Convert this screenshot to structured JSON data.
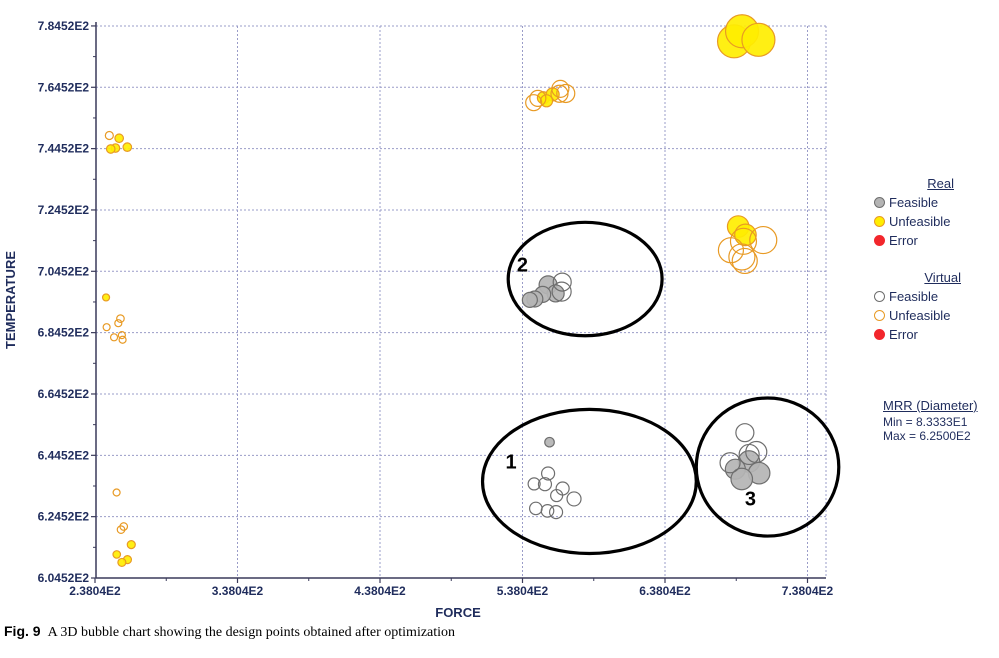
{
  "chart_data": {
    "type": "scatter",
    "xlabel": "FORCE",
    "ylabel": "TEMPERATURE",
    "xlim": [
      238.04,
      738.04
    ],
    "ylim": [
      604.52,
      784.52
    ],
    "x_ticks": [
      "2.3804E2",
      "3.3804E2",
      "4.3804E2",
      "5.3804E2",
      "6.3804E2",
      "7.3804E2"
    ],
    "y_ticks": [
      "6.0452E2",
      "6.2452E2",
      "6.4452E2",
      "6.6452E2",
      "6.8452E2",
      "7.0452E2",
      "7.2452E2",
      "7.4452E2",
      "7.6452E2",
      "7.8452E2"
    ],
    "grid": true,
    "series": [
      {
        "name": "Real Feasible",
        "type": "real",
        "status": "feasible",
        "points": [
          {
            "x": 556.0,
            "y": 700.1,
            "size": 180
          },
          {
            "x": 561.3,
            "y": 697.3,
            "size": 170
          },
          {
            "x": 552.2,
            "y": 697.0,
            "size": 160
          },
          {
            "x": 546.7,
            "y": 695.5,
            "size": 160
          },
          {
            "x": 543.2,
            "y": 695.2,
            "size": 150
          },
          {
            "x": 557.0,
            "y": 648.8,
            "size": 95
          },
          {
            "x": 697.0,
            "y": 642.5,
            "size": 215
          },
          {
            "x": 687.4,
            "y": 640.0,
            "size": 200
          },
          {
            "x": 704.1,
            "y": 638.7,
            "size": 215
          },
          {
            "x": 691.9,
            "y": 636.8,
            "size": 215
          }
        ]
      },
      {
        "name": "Real Unfeasible",
        "type": "real",
        "status": "unfeasible",
        "points": [
          {
            "x": 255.0,
            "y": 747.9,
            "size": 85
          },
          {
            "x": 252.4,
            "y": 744.7,
            "size": 85
          },
          {
            "x": 260.7,
            "y": 745.0,
            "size": 85
          },
          {
            "x": 249.1,
            "y": 744.4,
            "size": 85
          },
          {
            "x": 245.8,
            "y": 696.0,
            "size": 70
          },
          {
            "x": 253.3,
            "y": 612.2,
            "size": 75
          },
          {
            "x": 260.8,
            "y": 610.5,
            "size": 80
          },
          {
            "x": 256.9,
            "y": 609.6,
            "size": 80
          },
          {
            "x": 263.5,
            "y": 615.4,
            "size": 80
          },
          {
            "x": 552.7,
            "y": 761.1,
            "size": 120
          },
          {
            "x": 559.2,
            "y": 762.2,
            "size": 130
          },
          {
            "x": 554.9,
            "y": 760.1,
            "size": 120
          },
          {
            "x": 686.5,
            "y": 779.5,
            "size": 330
          },
          {
            "x": 692.1,
            "y": 782.8,
            "size": 330
          },
          {
            "x": 703.6,
            "y": 780.0,
            "size": 330
          },
          {
            "x": 689.4,
            "y": 719.1,
            "size": 215
          },
          {
            "x": 694.5,
            "y": 716.4,
            "size": 215
          }
        ]
      },
      {
        "name": "Real Error",
        "type": "real",
        "status": "error",
        "points": []
      },
      {
        "name": "Virtual Feasible",
        "type": "virtual",
        "status": "feasible",
        "points": [
          {
            "x": 556.0,
            "y": 638.6,
            "size": 130
          },
          {
            "x": 553.8,
            "y": 635.1,
            "size": 130
          },
          {
            "x": 546.2,
            "y": 635.2,
            "size": 120
          },
          {
            "x": 566.2,
            "y": 633.7,
            "size": 130
          },
          {
            "x": 562.0,
            "y": 631.4,
            "size": 120
          },
          {
            "x": 574.2,
            "y": 630.3,
            "size": 140
          },
          {
            "x": 547.4,
            "y": 627.2,
            "size": 125
          },
          {
            "x": 555.6,
            "y": 626.4,
            "size": 125
          },
          {
            "x": 561.6,
            "y": 626.0,
            "size": 130
          },
          {
            "x": 565.5,
            "y": 697.9,
            "size": 190
          },
          {
            "x": 565.9,
            "y": 701.0,
            "size": 180
          },
          {
            "x": 694.1,
            "y": 651.9,
            "size": 180
          },
          {
            "x": 697.1,
            "y": 644.8,
            "size": 200
          },
          {
            "x": 702.1,
            "y": 645.6,
            "size": 210
          },
          {
            "x": 683.7,
            "y": 642.1,
            "size": 200
          }
        ]
      },
      {
        "name": "Virtual Unfeasible",
        "type": "virtual",
        "status": "unfeasible",
        "points": [
          {
            "x": 248.1,
            "y": 748.8,
            "size": 80
          },
          {
            "x": 255.9,
            "y": 689.1,
            "size": 75
          },
          {
            "x": 254.4,
            "y": 687.6,
            "size": 70
          },
          {
            "x": 246.2,
            "y": 686.3,
            "size": 70
          },
          {
            "x": 256.9,
            "y": 683.7,
            "size": 70
          },
          {
            "x": 251.4,
            "y": 683.0,
            "size": 70
          },
          {
            "x": 257.4,
            "y": 682.2,
            "size": 70
          },
          {
            "x": 253.2,
            "y": 632.4,
            "size": 70
          },
          {
            "x": 258.2,
            "y": 621.3,
            "size": 75
          },
          {
            "x": 256.3,
            "y": 620.3,
            "size": 75
          },
          {
            "x": 548.8,
            "y": 760.9,
            "size": 160
          },
          {
            "x": 564.0,
            "y": 762.4,
            "size": 170
          },
          {
            "x": 568.4,
            "y": 762.5,
            "size": 180
          },
          {
            "x": 545.9,
            "y": 759.5,
            "size": 160
          },
          {
            "x": 564.6,
            "y": 764.0,
            "size": 170
          },
          {
            "x": 707.0,
            "y": 714.7,
            "size": 270
          },
          {
            "x": 693.1,
            "y": 714.3,
            "size": 260
          },
          {
            "x": 684.3,
            "y": 711.4,
            "size": 250
          },
          {
            "x": 694.0,
            "y": 707.9,
            "size": 250
          },
          {
            "x": 692.0,
            "y": 709.2,
            "size": 260
          }
        ]
      },
      {
        "name": "Virtual Error",
        "type": "virtual",
        "status": "error",
        "points": []
      }
    ],
    "annotations": [
      {
        "label": "1",
        "cx": 585.0,
        "cy": 636.0,
        "rx": 75.0,
        "ry": 23.5,
        "label_x": 530.0,
        "label_y": 640.3
      },
      {
        "label": "2",
        "cx": 582.0,
        "cy": 702.0,
        "rx": 54.0,
        "ry": 18.5,
        "label_x": 538.0,
        "label_y": 704.5
      },
      {
        "label": "3",
        "cx": 710.0,
        "cy": 640.7,
        "rx": 50.0,
        "ry": 22.5,
        "label_x": 698.0,
        "label_y": 628.2
      }
    ]
  },
  "legend": {
    "real": {
      "heading": "Real",
      "items": [
        {
          "label": "Feasible",
          "fill": "#b4b4b4",
          "stroke": "#6e6e6e"
        },
        {
          "label": "Unfeasible",
          "fill": "#ffee00",
          "stroke": "#e89a24"
        },
        {
          "label": "Error",
          "fill": "#f2262c",
          "stroke": "#f2262c"
        }
      ]
    },
    "virtual": {
      "heading": "Virtual",
      "items": [
        {
          "label": "Feasible",
          "fill": "none",
          "stroke": "#6e6e6e"
        },
        {
          "label": "Unfeasible",
          "fill": "none",
          "stroke": "#e89a24"
        },
        {
          "label": "Error",
          "fill": "#f2262c",
          "stroke": "#f2262c"
        }
      ]
    }
  },
  "mrr": {
    "heading": "MRR (Diameter)",
    "min": "Min = 8.3333E1",
    "max": "Max = 6.2500E2"
  },
  "caption": {
    "fig": "Fig. 9",
    "text": "A 3D bubble chart showing the design points obtained after optimization"
  },
  "colors": {
    "real_feasible_fill": "#b4b4b4",
    "real_feasible_stroke": "#6e6e6e",
    "unfeasible_fill": "#ffee00",
    "unfeasible_stroke": "#e89a24",
    "error": "#f2262c",
    "axis_text": "#1f2c5c",
    "grid": "#9a9cc8"
  }
}
